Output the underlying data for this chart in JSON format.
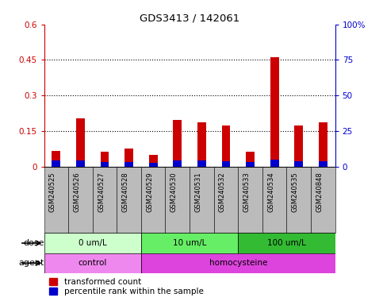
{
  "title": "GDS3413 / 142061",
  "samples": [
    "GSM240525",
    "GSM240526",
    "GSM240527",
    "GSM240528",
    "GSM240529",
    "GSM240530",
    "GSM240531",
    "GSM240532",
    "GSM240533",
    "GSM240534",
    "GSM240535",
    "GSM240848"
  ],
  "transformed_count": [
    0.065,
    0.205,
    0.062,
    0.075,
    0.05,
    0.195,
    0.188,
    0.172,
    0.062,
    0.46,
    0.172,
    0.188
  ],
  "percentile_rank_scaled": [
    0.025,
    0.025,
    0.02,
    0.02,
    0.015,
    0.025,
    0.025,
    0.022,
    0.02,
    0.028,
    0.022,
    0.022
  ],
  "ylim_left": [
    0,
    0.6
  ],
  "ylim_right": [
    0,
    100
  ],
  "yticks_left": [
    0,
    0.15,
    0.3,
    0.45,
    0.6
  ],
  "yticks_right": [
    0,
    25,
    50,
    75,
    100
  ],
  "ytick_labels_left": [
    "0",
    "0.15",
    "0.3",
    "0.45",
    "0.6"
  ],
  "ytick_labels_right": [
    "0",
    "25",
    "50",
    "75",
    "100%"
  ],
  "grid_values": [
    0.15,
    0.3,
    0.45
  ],
  "bar_color_red": "#cc0000",
  "bar_color_blue": "#0000cc",
  "dose_groups": [
    {
      "label": "0 um/L",
      "start": 0,
      "end": 4,
      "color": "#ccffcc"
    },
    {
      "label": "10 um/L",
      "start": 4,
      "end": 8,
      "color": "#66ee66"
    },
    {
      "label": "100 um/L",
      "start": 8,
      "end": 12,
      "color": "#33bb33"
    }
  ],
  "agent_groups": [
    {
      "label": "control",
      "start": 0,
      "end": 4,
      "color": "#ee88ee"
    },
    {
      "label": "homocysteine",
      "start": 4,
      "end": 12,
      "color": "#dd44dd"
    }
  ],
  "dose_label": "dose",
  "agent_label": "agent",
  "legend_red": "transformed count",
  "legend_blue": "percentile rank within the sample",
  "axis_color_left": "#cc0000",
  "axis_color_right": "#0000cc",
  "tick_bg_color": "#bbbbbb",
  "bar_width": 0.35,
  "blue_bar_width": 0.35
}
